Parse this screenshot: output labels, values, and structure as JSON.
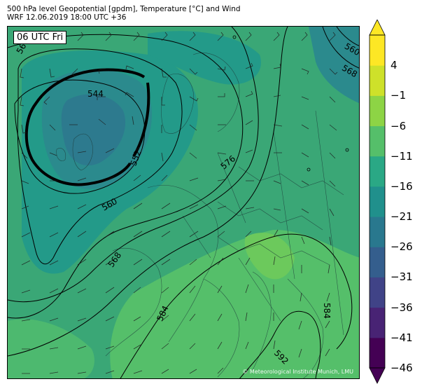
{
  "title_line1": "500 hPa level Geopotential [gpdm], Temperature [°C] and Wind",
  "title_line2": "WRF 12.06.2019 18:00 UTC +36",
  "time_label": "06 UTC Fri",
  "credit": "© Meteorological Institute Munich, LMU",
  "contour_labels": [
    {
      "id": "544",
      "text": "544"
    },
    {
      "id": "552",
      "text": "552"
    },
    {
      "id": "560w",
      "text": "560"
    },
    {
      "id": "560ne",
      "text": "560"
    },
    {
      "id": "568",
      "text": "568"
    },
    {
      "id": "568ne",
      "text": "568"
    },
    {
      "id": "576",
      "text": "576"
    },
    {
      "id": "584",
      "text": "584"
    },
    {
      "id": "592",
      "text": "592"
    },
    {
      "id": "584se",
      "text": "584"
    },
    {
      "id": "56x",
      "text": "56"
    }
  ],
  "colorbar": {
    "colors": [
      "#440154",
      "#482374",
      "#404387",
      "#345e8d",
      "#29788e",
      "#20908c",
      "#2aa885",
      "#55bf6a",
      "#8dd445",
      "#cee12a",
      "#fde725"
    ],
    "tick_labels": [
      "4",
      "−1",
      "−6",
      "−11",
      "−16",
      "−21",
      "−26",
      "−31",
      "−36",
      "−41",
      "−46"
    ]
  }
}
